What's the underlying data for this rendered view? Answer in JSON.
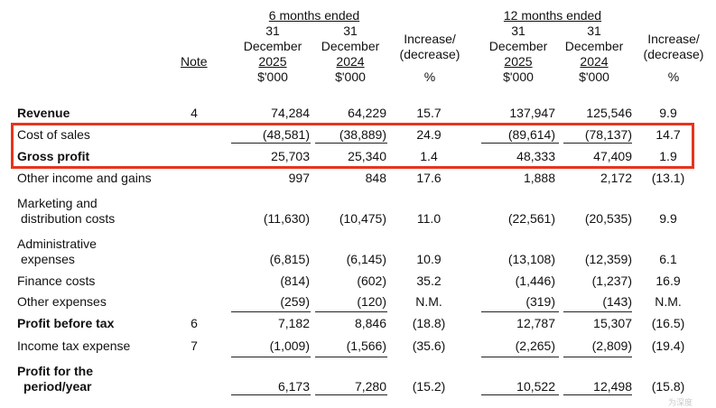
{
  "header": {
    "group_6m": "6 months ended",
    "group_12m": "12 months ended",
    "note": "Note",
    "cols": [
      {
        "day": "31",
        "month": "December",
        "year": "2025",
        "unit": "$'000"
      },
      {
        "day": "31",
        "month": "December",
        "year": "2024",
        "unit": "$'000"
      },
      {
        "line1": "Increase/",
        "line2": "(decrease)",
        "unit": "%"
      },
      {
        "day": "31",
        "month": "December",
        "year": "2025",
        "unit": "$'000"
      },
      {
        "day": "31",
        "month": "December",
        "year": "2024",
        "unit": "$'000"
      },
      {
        "line1": "Increase/",
        "line2": "(decrease)",
        "unit": "%"
      }
    ]
  },
  "rows": [
    {
      "label": "Revenue",
      "bold": true,
      "note": "4",
      "values": [
        "74,284",
        "64,229",
        "15.7",
        "137,947",
        "125,546",
        "9.9"
      ]
    },
    {
      "label": "Cost of sales",
      "bold": false,
      "note": "",
      "values": [
        "(48,581)",
        "(38,889)",
        "24.9",
        "(89,614)",
        "(78,137)",
        "14.7"
      ]
    },
    {
      "label": "Gross profit",
      "bold": true,
      "note": "",
      "values": [
        "25,703",
        "25,340",
        "1.4",
        "48,333",
        "47,409",
        "1.9"
      ]
    },
    {
      "label": "Other income and gains",
      "bold": false,
      "note": "",
      "values": [
        "997",
        "848",
        "17.6",
        "1,888",
        "2,172",
        "(13.1)"
      ]
    },
    {
      "label": "Marketing and",
      "label2": "distribution costs",
      "bold": false,
      "note": "",
      "values": [
        "(11,630)",
        "(10,475)",
        "11.0",
        "(22,561)",
        "(20,535)",
        "9.9"
      ]
    },
    {
      "label": "Administrative",
      "label2": "expenses",
      "bold": false,
      "note": "",
      "values": [
        "(6,815)",
        "(6,145)",
        "10.9",
        "(13,108)",
        "(12,359)",
        "6.1"
      ]
    },
    {
      "label": "Finance costs",
      "bold": false,
      "note": "",
      "values": [
        "(814)",
        "(602)",
        "35.2",
        "(1,446)",
        "(1,237)",
        "16.9"
      ]
    },
    {
      "label": "Other expenses",
      "bold": false,
      "note": "",
      "values": [
        "(259)",
        "(120)",
        "N.M.",
        "(319)",
        "(143)",
        "N.M."
      ]
    },
    {
      "label": "Profit before tax",
      "bold": true,
      "note": "6",
      "values": [
        "7,182",
        "8,846",
        "(18.8)",
        "12,787",
        "15,307",
        "(16.5)"
      ]
    },
    {
      "label": "Income tax expense",
      "bold": false,
      "note": "7",
      "values": [
        "(1,009)",
        "(1,566)",
        "(35.6)",
        "(2,265)",
        "(2,809)",
        "(19.4)"
      ]
    },
    {
      "label": "Profit for the",
      "label2": "period/year",
      "bold": true,
      "note": "",
      "values": [
        "6,173",
        "7,280",
        "(15.2)",
        "10,522",
        "12,498",
        "(15.8)"
      ]
    }
  ],
  "highlight": {
    "color": "#e8341c"
  },
  "watermark": "为深度"
}
